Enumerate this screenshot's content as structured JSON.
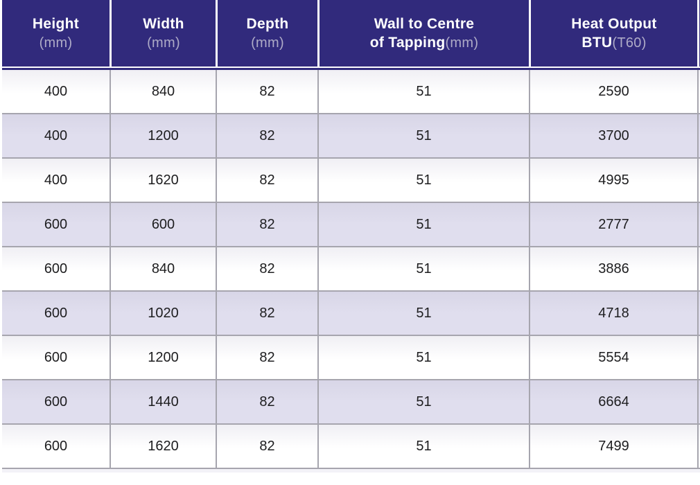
{
  "table": {
    "columns": [
      {
        "title": "Height",
        "sub_bold": "",
        "sub_light": "(mm)"
      },
      {
        "title": "Width",
        "sub_bold": "",
        "sub_light": "(mm)"
      },
      {
        "title": "Depth",
        "sub_bold": "",
        "sub_light": "(mm)"
      },
      {
        "title": "Wall to Centre",
        "sub_bold": "of Tapping",
        "sub_light": "(mm)"
      },
      {
        "title": "Heat Output",
        "sub_bold": "BTU",
        "sub_light": "(T60)"
      }
    ],
    "rows": [
      [
        400,
        840,
        82,
        51,
        2590
      ],
      [
        400,
        1200,
        82,
        51,
        3700
      ],
      [
        400,
        1620,
        82,
        51,
        4995
      ],
      [
        600,
        600,
        82,
        51,
        2777
      ],
      [
        600,
        840,
        82,
        51,
        3886
      ],
      [
        600,
        1020,
        82,
        51,
        4718
      ],
      [
        600,
        1200,
        82,
        51,
        5554
      ],
      [
        600,
        1440,
        82,
        51,
        6664
      ],
      [
        600,
        1620,
        82,
        51,
        7499
      ]
    ]
  },
  "colors": {
    "header_bg": "#312a7c",
    "header_text": "#ffffff",
    "header_unit_text": "#aeabc7",
    "row_alt_bg": "#dfddec",
    "row_bg": "#ffffff",
    "grid_border": "#a6a5ae",
    "body_text": "#1d1d1f"
  }
}
